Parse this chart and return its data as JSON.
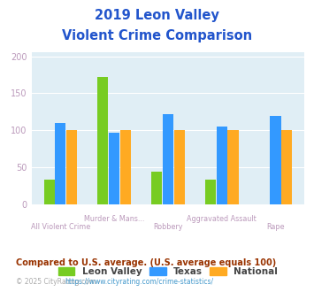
{
  "title_line1": "2019 Leon Valley",
  "title_line2": "Violent Crime Comparison",
  "categories": [
    "All Violent Crime",
    "Murder & Mans...",
    "Robbery",
    "Aggravated Assault",
    "Rape"
  ],
  "leon_valley": [
    33,
    172,
    44,
    33,
    0
  ],
  "texas": [
    110,
    97,
    122,
    105,
    119
  ],
  "national": [
    100,
    100,
    100,
    100,
    100
  ],
  "colors": {
    "leon_valley": "#77cc22",
    "texas": "#3399ff",
    "national": "#ffaa22"
  },
  "ylim": [
    0,
    205
  ],
  "yticks": [
    0,
    50,
    100,
    150,
    200
  ],
  "plot_bg": "#e0eef5",
  "footnote1": "Compared to U.S. average. (U.S. average equals 100)",
  "footnote2_pre": "© 2025 CityRating.com - ",
  "footnote2_url": "https://www.cityrating.com/crime-statistics/",
  "title_color": "#2255cc",
  "footnote1_color": "#993300",
  "footnote2_color": "#aaaaaa",
  "url_color": "#4499cc",
  "tick_color": "#bb99bb",
  "grid_color": "#ffffff",
  "bar_width": 0.2
}
